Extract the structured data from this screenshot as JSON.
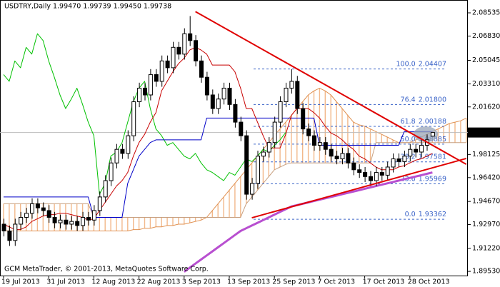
{
  "chart_data": {
    "type": "candlestick",
    "title": "USDTRY,Daily  1.99470 1.99739 1.99450 1.99738",
    "copyright": "GCM MetaTrader, © 2001-2013, MetaQuotes Software Corp.",
    "categories": [
      "19 Jul 2013",
      null,
      null,
      null,
      null,
      null,
      null,
      null,
      "31 Jul 2013",
      null,
      null,
      null,
      null,
      null,
      null,
      null,
      "12 Aug 2013",
      null,
      null,
      null,
      null,
      null,
      null,
      null,
      "22 Aug 2013",
      null,
      null,
      null,
      null,
      null,
      null,
      null,
      "3 Sep 2013",
      null,
      null,
      null,
      null,
      null,
      null,
      null,
      "13 Sep 2013",
      null,
      null,
      null,
      null,
      null,
      null,
      null,
      "25 Sep 2013",
      null,
      null,
      null,
      null,
      null,
      null,
      null,
      "7 Oct 2013",
      null,
      null,
      null,
      null,
      null,
      null,
      null,
      "17 Oct 2013",
      null,
      null,
      null,
      null,
      null,
      null,
      null,
      "28 Oct 2013",
      null,
      null,
      null,
      null,
      null,
      null,
      null,
      null,
      null,
      null
    ],
    "open": [
      1.93,
      1.925,
      1.918,
      1.93,
      1.935,
      1.938,
      1.945,
      1.942,
      1.94,
      1.935,
      1.931,
      1.933,
      1.93,
      1.932,
      1.929,
      1.935,
      1.933,
      1.94,
      1.95,
      1.962,
      1.975,
      1.985,
      1.982,
      1.995,
      2.02,
      2.03,
      2.025,
      2.04,
      2.035,
      2.05,
      2.045,
      2.06,
      2.055,
      2.07,
      2.065,
      2.05,
      2.038,
      2.025,
      2.015,
      2.022,
      2.03,
      2.018,
      2.005,
      1.995,
      1.952,
      1.96,
      1.98,
      1.983,
      1.99,
      2.005,
      2.02,
      2.03,
      2.035,
      2.015,
      2.0,
      1.995,
      1.988,
      1.99,
      1.985,
      1.98,
      1.978,
      1.982,
      1.975,
      1.97,
      1.968,
      1.965,
      1.962,
      1.968,
      1.966,
      1.972,
      1.978,
      1.976,
      1.98,
      1.985,
      1.983,
      1.988,
      1.9947,
      null,
      null,
      null,
      null,
      null,
      null
    ],
    "high": [
      1.934,
      1.929,
      1.934,
      1.939,
      1.942,
      1.949,
      1.949,
      1.946,
      1.944,
      1.939,
      1.937,
      1.937,
      1.936,
      1.936,
      1.939,
      1.939,
      1.944,
      1.954,
      1.966,
      1.979,
      1.989,
      1.989,
      1.999,
      2.024,
      2.034,
      2.034,
      2.044,
      2.044,
      2.054,
      2.054,
      2.064,
      2.064,
      2.074,
      2.083,
      2.069,
      2.054,
      2.042,
      2.029,
      2.026,
      2.034,
      2.034,
      2.022,
      2.009,
      1.999,
      1.964,
      1.984,
      1.987,
      1.994,
      2.009,
      2.024,
      2.034,
      2.044,
      2.039,
      2.019,
      2.004,
      1.999,
      1.994,
      1.994,
      1.989,
      1.984,
      1.986,
      1.986,
      1.979,
      1.974,
      1.972,
      1.969,
      1.972,
      1.972,
      1.976,
      1.982,
      1.982,
      1.984,
      1.989,
      1.989,
      1.992,
      1.996,
      1.99739,
      null,
      null,
      null,
      null,
      null,
      null
    ],
    "low": [
      1.921,
      1.914,
      1.914,
      1.926,
      1.931,
      1.934,
      1.938,
      1.936,
      1.931,
      1.927,
      1.927,
      1.926,
      1.926,
      1.925,
      1.925,
      1.929,
      1.929,
      1.936,
      1.946,
      1.958,
      1.971,
      1.978,
      1.978,
      1.991,
      2.016,
      2.021,
      2.021,
      2.031,
      2.031,
      2.041,
      2.041,
      2.051,
      2.051,
      2.061,
      2.046,
      2.034,
      2.021,
      2.011,
      2.011,
      2.018,
      2.014,
      2.001,
      1.991,
      1.948,
      1.948,
      1.956,
      1.976,
      1.979,
      1.986,
      2.001,
      2.016,
      2.026,
      2.011,
      1.996,
      1.991,
      1.984,
      1.984,
      1.981,
      1.976,
      1.974,
      1.974,
      1.971,
      1.966,
      1.964,
      1.961,
      1.958,
      1.958,
      1.962,
      1.962,
      1.968,
      1.972,
      1.972,
      1.976,
      1.979,
      1.979,
      1.984,
      1.9945,
      null,
      null,
      null,
      null,
      null,
      null
    ],
    "close": [
      1.925,
      1.918,
      1.93,
      1.935,
      1.938,
      1.945,
      1.942,
      1.94,
      1.935,
      1.931,
      1.933,
      1.93,
      1.932,
      1.929,
      1.935,
      1.933,
      1.94,
      1.95,
      1.962,
      1.975,
      1.985,
      1.982,
      1.995,
      2.02,
      2.03,
      2.025,
      2.04,
      2.035,
      2.05,
      2.045,
      2.06,
      2.055,
      2.07,
      2.065,
      2.05,
      2.038,
      2.025,
      2.015,
      2.022,
      2.03,
      2.018,
      2.005,
      1.995,
      1.952,
      1.96,
      1.98,
      1.983,
      1.99,
      2.005,
      2.02,
      2.03,
      2.035,
      2.015,
      2.0,
      1.995,
      1.988,
      1.99,
      1.985,
      1.98,
      1.978,
      1.982,
      1.975,
      1.97,
      1.968,
      1.965,
      1.962,
      1.968,
      1.966,
      1.972,
      1.978,
      1.976,
      1.98,
      1.985,
      1.983,
      1.988,
      1.992,
      1.99738,
      null,
      null,
      null,
      null,
      null,
      null
    ],
    "ylim": [
      1.8922,
      2.0948
    ],
    "yticks": [
      {
        "value": 2.08535,
        "label": "2.08535"
      },
      {
        "value": 2.0683,
        "label": "2.06830"
      },
      {
        "value": 2.05045,
        "label": "2.05045"
      },
      {
        "value": 2.0331,
        "label": "2.03310"
      },
      {
        "value": 2.0162,
        "label": "2.01620"
      },
      {
        "value": 1.98125,
        "label": "1.98125"
      },
      {
        "value": 1.9642,
        "label": "1.96420"
      },
      {
        "value": 1.9467,
        "label": "1.94670"
      },
      {
        "value": 1.9297,
        "label": "1.92970"
      },
      {
        "value": 1.9122,
        "label": "1.91220"
      },
      {
        "value": 1.8953,
        "label": "1.89530"
      }
    ],
    "grid": false,
    "cloud": {
      "color_a": "#e09050",
      "color_b": "#c8a080",
      "hatch": "#f2b88a",
      "span_a": [
        1.925,
        1.925,
        1.925,
        1.925,
        1.925,
        1.925,
        1.925,
        1.925,
        1.925,
        1.925,
        1.925,
        1.925,
        1.925,
        1.925,
        1.925,
        1.925,
        1.925,
        1.925,
        1.925,
        1.925,
        1.925,
        1.925,
        1.925,
        1.926,
        1.926,
        1.927,
        1.927,
        1.928,
        1.928,
        1.929,
        1.929,
        1.93,
        1.93,
        1.931,
        1.932,
        1.933,
        1.935,
        1.94,
        1.945,
        1.95,
        1.955,
        1.96,
        1.965,
        1.97,
        1.975,
        1.98,
        1.985,
        1.99,
        1.995,
        2.0,
        2.005,
        2.01,
        2.015,
        2.02,
        2.025,
        2.028,
        2.03,
        2.028,
        2.025,
        2.02,
        2.015,
        2.01,
        2.005,
        2.003,
        2.002,
        2.0,
        1.998,
        1.996,
        1.994,
        1.992,
        1.99,
        1.99,
        1.99,
        1.992,
        1.994,
        1.996,
        1.998,
        2.0,
        2.002,
        2.004,
        2.005,
        2.006,
        2.008
      ],
      "span_b": [
        1.945,
        1.945,
        1.945,
        1.945,
        1.945,
        1.945,
        1.945,
        1.945,
        1.945,
        1.945,
        1.945,
        1.945,
        1.945,
        1.945,
        1.945,
        1.945,
        1.935,
        1.935,
        1.935,
        1.935,
        1.935,
        1.935,
        1.935,
        1.935,
        1.935,
        1.935,
        1.935,
        1.935,
        1.935,
        1.935,
        1.935,
        1.935,
        1.935,
        1.935,
        1.935,
        1.935,
        1.935,
        1.935,
        1.935,
        1.935,
        1.935,
        1.935,
        1.935,
        1.945,
        1.95,
        1.955,
        1.96,
        1.965,
        1.97,
        1.972,
        1.974,
        1.975,
        1.975,
        1.975,
        1.975,
        1.975,
        1.975,
        1.975,
        1.975,
        1.975,
        1.975,
        1.975,
        1.975,
        1.975,
        1.975,
        1.975,
        1.99,
        1.99,
        1.99,
        1.99,
        1.99,
        1.99,
        1.99,
        1.99,
        1.99,
        1.99,
        1.99,
        1.99,
        1.99,
        1.99,
        1.99,
        1.99,
        1.99
      ]
    },
    "lines": [
      {
        "color": "#b84fd0",
        "width": 3,
        "values": [
          null,
          null,
          null,
          null,
          null,
          null,
          null,
          null,
          null,
          null,
          null,
          null,
          null,
          null,
          null,
          null,
          null,
          null,
          null,
          null,
          null,
          null,
          null,
          null,
          null,
          null,
          null,
          null,
          null,
          null,
          null,
          null,
          1.895,
          1.898,
          1.901,
          1.904,
          1.907,
          1.91,
          1.913,
          1.916,
          1.919,
          1.922,
          1.925,
          1.927,
          1.929,
          1.931,
          1.933,
          1.935,
          1.937,
          1.939,
          1.941,
          1.943,
          1.944,
          1.945,
          1.946,
          1.947,
          1.948,
          1.949,
          1.95,
          1.951,
          1.952,
          1.953,
          1.954,
          1.955,
          1.956,
          1.957,
          1.958,
          1.959,
          1.96,
          1.961,
          1.962,
          1.963,
          1.964,
          1.965,
          1.966,
          1.967,
          1.968,
          null,
          null,
          null,
          null,
          null,
          null
        ]
      },
      {
        "color": "#00c000",
        "width": 1,
        "values": [
          2.04,
          2.035,
          2.05,
          2.045,
          2.06,
          2.055,
          2.07,
          2.065,
          2.05,
          2.038,
          2.025,
          2.015,
          2.022,
          2.03,
          2.018,
          2.005,
          1.995,
          1.952,
          1.96,
          1.98,
          1.983,
          1.99,
          2.005,
          2.02,
          2.03,
          2.035,
          2.015,
          2.0,
          1.995,
          1.988,
          1.99,
          1.985,
          1.98,
          1.978,
          1.982,
          1.975,
          1.97,
          1.968,
          1.965,
          1.962,
          1.968,
          1.966,
          1.972,
          1.978,
          1.976,
          1.98,
          1.985,
          1.983,
          1.988,
          1.992,
          1.99738,
          null,
          null,
          null,
          null,
          null,
          null,
          null,
          null,
          null,
          null,
          null,
          null,
          null,
          null,
          null,
          null,
          null,
          null,
          null,
          null,
          null,
          null,
          null,
          null,
          null,
          null,
          null,
          null,
          null,
          null,
          null,
          null
        ]
      },
      {
        "color": "#0000c8",
        "width": 1,
        "values": [
          1.95,
          1.95,
          1.95,
          1.95,
          1.95,
          1.95,
          1.95,
          1.95,
          1.95,
          1.95,
          1.95,
          1.95,
          1.95,
          1.95,
          1.95,
          1.95,
          1.935,
          1.935,
          1.935,
          1.935,
          1.935,
          1.935,
          1.96,
          1.97,
          1.98,
          1.985,
          1.99,
          1.992,
          1.992,
          1.992,
          1.992,
          1.992,
          1.992,
          1.992,
          1.992,
          1.992,
          2.008,
          2.008,
          2.008,
          2.008,
          2.008,
          2.008,
          2.008,
          2.008,
          2.008,
          2.008,
          2.008,
          2.008,
          2.008,
          2.008,
          2.008,
          2.008,
          2.008,
          2.008,
          2.008,
          2.008,
          1.988,
          1.988,
          1.988,
          1.988,
          1.988,
          1.988,
          1.988,
          1.988,
          1.988,
          1.988,
          1.988,
          1.988,
          1.988,
          1.988,
          1.988,
          1.998,
          1.998,
          1.998,
          1.998,
          1.998,
          1.998,
          null,
          null,
          null,
          null,
          null,
          null
        ]
      },
      {
        "color": "#c80000",
        "width": 1,
        "values": [
          1.93,
          1.928,
          1.926,
          1.926,
          1.928,
          1.932,
          1.934,
          1.936,
          1.937,
          1.937,
          1.938,
          1.938,
          1.937,
          1.936,
          1.935,
          1.933,
          1.934,
          1.94,
          1.946,
          1.952,
          1.958,
          1.962,
          1.968,
          1.98,
          1.99,
          1.996,
          2.005,
          2.012,
          2.028,
          2.035,
          2.042,
          2.048,
          2.052,
          2.058,
          2.06,
          2.058,
          2.055,
          2.047,
          2.047,
          2.047,
          2.047,
          2.042,
          2.03,
          2.015,
          2.015,
          2.005,
          1.995,
          1.986,
          1.986,
          1.986,
          1.996,
          2.01,
          2.015,
          2.015,
          2.015,
          2.012,
          2.008,
          2.002,
          1.997,
          1.995,
          1.992,
          1.988,
          1.985,
          1.98,
          1.978,
          1.975,
          1.972,
          1.97,
          1.97,
          1.97,
          1.972,
          1.973,
          1.975,
          1.977,
          1.978,
          1.98,
          1.982,
          null,
          null,
          null,
          null,
          null,
          null
        ]
      }
    ],
    "trendlines": [
      {
        "color": "#e00000",
        "x": [
          34,
          82
        ],
        "y": [
          2.0863,
          1.974
        ]
      },
      {
        "color": "#e00000",
        "x": [
          44,
          82
        ],
        "y": [
          1.9347,
          1.9783
        ]
      }
    ],
    "fibonacci": {
      "color": "#3a63c8",
      "levels": [
        "100.0",
        "76.4",
        "61.8",
        "50.0",
        "38.2",
        "23.6",
        "0.0"
      ],
      "values": [
        2.04407,
        2.018,
        2.00188,
        1.98885,
        1.97581,
        1.95969,
        1.93362
      ],
      "value_labels": [
        "2.04407",
        "2.01800",
        "2.00188",
        "1.98885",
        "1.97581",
        "1.95969",
        "1.93362"
      ]
    }
  }
}
